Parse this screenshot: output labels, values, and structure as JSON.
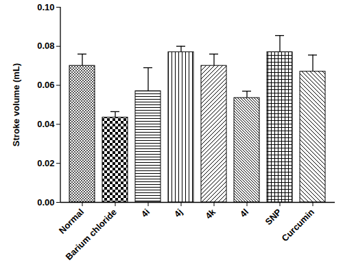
{
  "chart_data": {
    "type": "bar",
    "y_label": "Stroke volume (mL)",
    "categories": [
      "Normal",
      "Barium chloride",
      "4i",
      "4j",
      "4k",
      "4l",
      "SNP",
      "Curcumin"
    ],
    "values": [
      0.07,
      0.0435,
      0.057,
      0.077,
      0.07,
      0.0535,
      0.077,
      0.067
    ],
    "error": [
      0.006,
      0.003,
      0.012,
      0.003,
      0.006,
      0.0035,
      0.0085,
      0.0085
    ],
    "ylim": [
      0,
      0.1
    ],
    "yticks": [
      {
        "value": 0,
        "label": "0.00"
      },
      0.02,
      0.04,
      0.06,
      0.08,
      {
        "value": 0.1,
        "label": "0.10"
      }
    ]
  }
}
